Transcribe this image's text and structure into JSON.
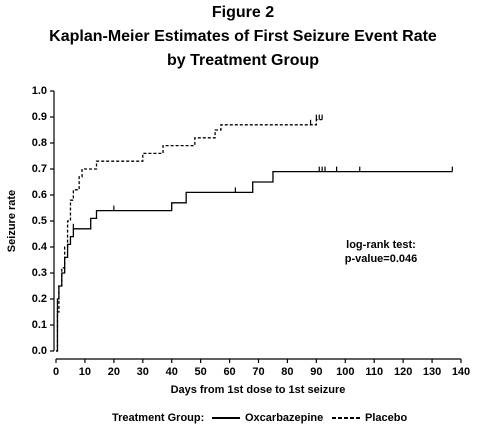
{
  "chart_data": {
    "type": "step",
    "title": [
      "Figure 2",
      "Kaplan-Meier Estimates of First Seizure Event Rate",
      "by Treatment Group"
    ],
    "x_label": "Days from 1st dose to 1st seizure",
    "y_label": "Seizure rate",
    "annotation": [
      "log-rank test:",
      "p-value=0.046"
    ],
    "legend_title": "Treatment Group:",
    "xlim": [
      0,
      140
    ],
    "xticks": [
      0,
      10,
      20,
      30,
      40,
      50,
      60,
      70,
      80,
      90,
      100,
      110,
      120,
      130,
      140
    ],
    "ylim": [
      0,
      1
    ],
    "yticks": [
      {
        "value": 0,
        "label": "0.0"
      },
      0.1,
      0.2,
      0.3,
      0.4,
      0.5,
      0.6,
      0.7,
      0.8,
      0.9,
      {
        "value": 1,
        "label": "1.0"
      }
    ],
    "series": [
      {
        "name": "Oxcarbazepine",
        "color": "#000000",
        "dash": false,
        "x": [
          0,
          0.5,
          0.5,
          1,
          1,
          2,
          2,
          3,
          3,
          4,
          4,
          5,
          5,
          6,
          6,
          12,
          12,
          14,
          14,
          40,
          40,
          45,
          45,
          68,
          68,
          75,
          75,
          137
        ],
        "values": [
          0,
          0,
          0.2,
          0.2,
          0.25,
          0.25,
          0.3,
          0.3,
          0.36,
          0.36,
          0.41,
          0.41,
          0.44,
          0.44,
          0.47,
          0.47,
          0.51,
          0.51,
          0.54,
          0.54,
          0.57,
          0.57,
          0.61,
          0.61,
          0.65,
          0.65,
          0.69,
          0.69
        ],
        "censored": {
          "x": [
            6,
            20,
            62,
            91,
            92,
            93,
            97,
            105,
            137
          ],
          "values": [
            0.47,
            0.54,
            0.61,
            0.69,
            0.69,
            0.69,
            0.69,
            0.69,
            0.69
          ]
        }
      },
      {
        "name": "Placebo",
        "color": "#000000",
        "dash": true,
        "x": [
          0,
          0.5,
          0.5,
          1,
          1,
          2,
          2,
          3,
          3,
          4,
          4,
          5,
          5,
          6,
          6,
          8,
          8,
          9,
          9,
          14,
          14,
          30,
          30,
          37,
          37,
          48,
          48,
          55,
          55,
          57,
          57,
          90,
          90,
          92
        ],
        "values": [
          0,
          0,
          0.15,
          0.15,
          0.25,
          0.25,
          0.32,
          0.32,
          0.4,
          0.4,
          0.5,
          0.5,
          0.58,
          0.58,
          0.62,
          0.62,
          0.67,
          0.67,
          0.7,
          0.7,
          0.73,
          0.73,
          0.76,
          0.76,
          0.79,
          0.79,
          0.82,
          0.82,
          0.85,
          0.85,
          0.87,
          0.87,
          0.89,
          0.89
        ],
        "censored": {
          "x": [
            88,
            90,
            91,
            92
          ],
          "values": [
            0.87,
            0.89,
            0.89,
            0.89
          ]
        }
      }
    ]
  }
}
